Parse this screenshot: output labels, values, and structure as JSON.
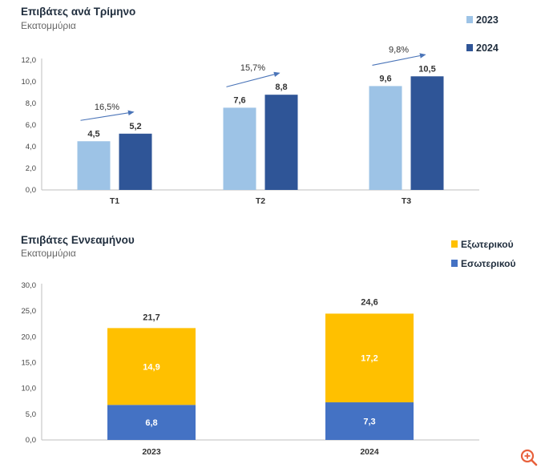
{
  "chart_data": [
    {
      "type": "bar",
      "title": "Επιβάτες ανά Τρίμηνο",
      "subtitle": "Εκατομμύρια",
      "categories": [
        "T1",
        "T2",
        "T3"
      ],
      "series": [
        {
          "name": "2023",
          "values": [
            4.5,
            7.6,
            9.6
          ],
          "labels": [
            "4,5",
            "7,6",
            "9,6"
          ],
          "color": "#9dc3e6"
        },
        {
          "name": "2024",
          "values": [
            5.2,
            8.8,
            10.5
          ],
          "labels": [
            "5,2",
            "8,8",
            "10,5"
          ],
          "color": "#2f5597"
        }
      ],
      "growth_labels": [
        "16,5%",
        "15,7%",
        "9,8%"
      ],
      "ylim": [
        0,
        12
      ],
      "yticks": [
        "0,0",
        "2,0",
        "4,0",
        "6,0",
        "8,0",
        "10,0",
        "12,0"
      ],
      "legend_position": "top-right"
    },
    {
      "type": "stacked-bar",
      "title": "Επιβάτες Εννεαμήνου",
      "subtitle": "Εκατομμύρια",
      "categories": [
        "2023",
        "2024"
      ],
      "series": [
        {
          "name": "Εσωτερικού",
          "values": [
            6.8,
            7.3
          ],
          "labels": [
            "6,8",
            "7,3"
          ],
          "color": "#4472c4"
        },
        {
          "name": "Εξωτερικού",
          "values": [
            14.9,
            17.2
          ],
          "labels": [
            "14,9",
            "17,2"
          ],
          "color": "#ffc000"
        }
      ],
      "totals": [
        21.7,
        24.6
      ],
      "total_labels": [
        "21,7",
        "24,6"
      ],
      "ylim": [
        0,
        30
      ],
      "yticks": [
        "0,0",
        "5,0",
        "10,0",
        "15,0",
        "20,0",
        "25,0",
        "30,0"
      ],
      "legend_position": "top-right"
    }
  ],
  "zoom_icon": "zoom-in-icon",
  "zoom_color": "#e8613c"
}
